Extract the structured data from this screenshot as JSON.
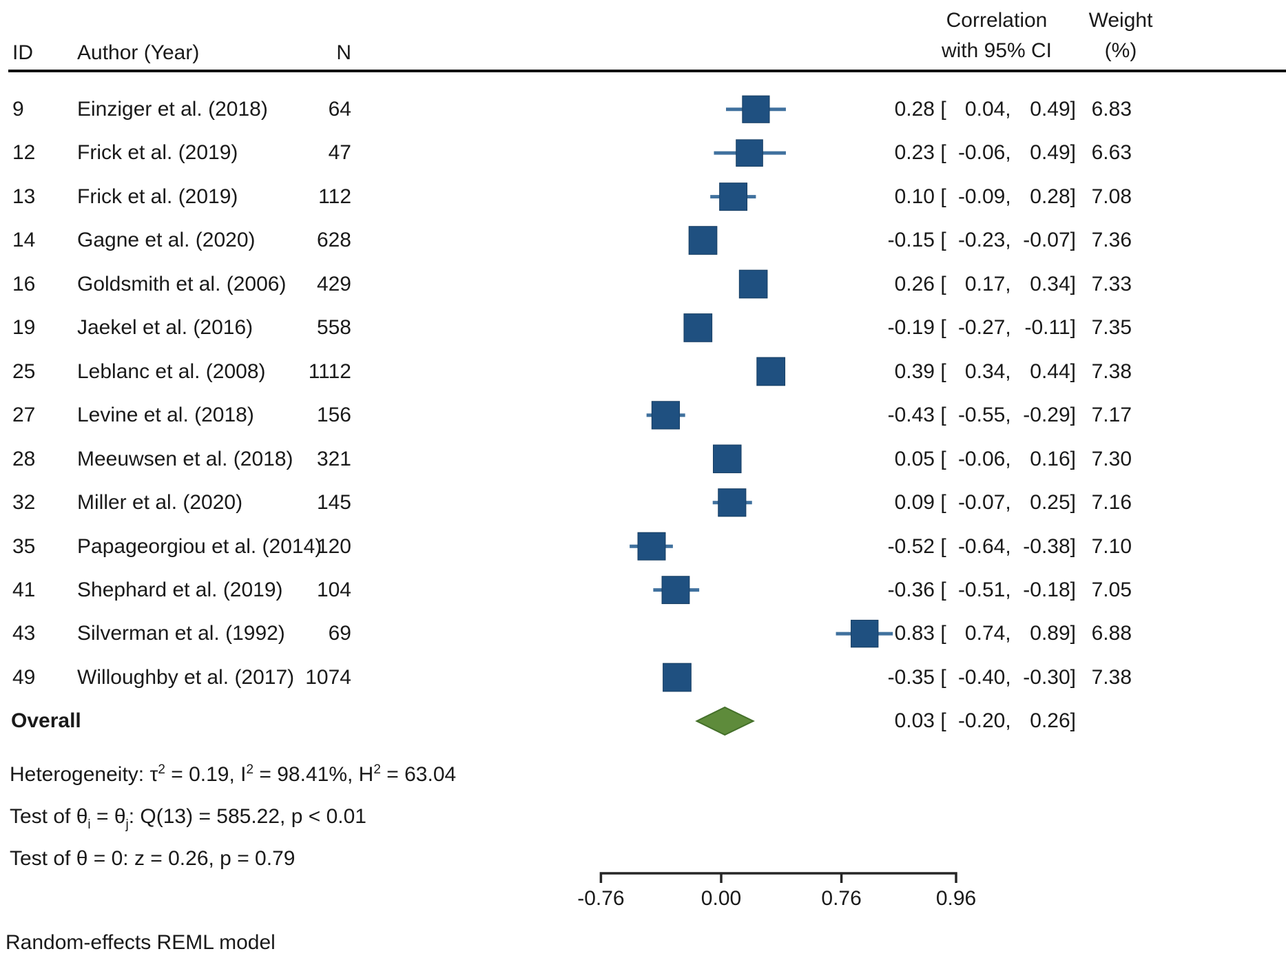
{
  "header": {
    "id": "ID",
    "author": "Author (Year)",
    "n": "N",
    "corr1": "Correlation",
    "corr2": "with 95% CI",
    "w1": "Weight",
    "w2": "(%)"
  },
  "chart_data": {
    "type": "forest",
    "x_scale": "fisher_z_of_correlation",
    "axis": {
      "xlim_r": [
        -0.76,
        0.96
      ],
      "ticks": [
        {
          "r": -0.76,
          "label": "-0.76"
        },
        {
          "r": 0.0,
          "label": "0.00"
        },
        {
          "r": 0.76,
          "label": "0.76"
        },
        {
          "r": 0.96,
          "label": "0.96"
        }
      ]
    },
    "studies": [
      {
        "id": 9,
        "author": "Einziger et al. (2018)",
        "n": 64,
        "est": 0.28,
        "lo": 0.04,
        "hi": 0.49,
        "weight": 6.83
      },
      {
        "id": 12,
        "author": "Frick et al. (2019)",
        "n": 47,
        "est": 0.23,
        "lo": -0.06,
        "hi": 0.49,
        "weight": 6.63
      },
      {
        "id": 13,
        "author": "Frick et al. (2019)",
        "n": 112,
        "est": 0.1,
        "lo": -0.09,
        "hi": 0.28,
        "weight": 7.08
      },
      {
        "id": 14,
        "author": "Gagne et al. (2020)",
        "n": 628,
        "est": -0.15,
        "lo": -0.23,
        "hi": -0.07,
        "weight": 7.36
      },
      {
        "id": 16,
        "author": "Goldsmith et al. (2006)",
        "n": 429,
        "est": 0.26,
        "lo": 0.17,
        "hi": 0.34,
        "weight": 7.33
      },
      {
        "id": 19,
        "author": "Jaekel et al. (2016)",
        "n": 558,
        "est": -0.19,
        "lo": -0.27,
        "hi": -0.11,
        "weight": 7.35
      },
      {
        "id": 25,
        "author": "Leblanc et al. (2008)",
        "n": 1112,
        "est": 0.39,
        "lo": 0.34,
        "hi": 0.44,
        "weight": 7.38
      },
      {
        "id": 27,
        "author": "Levine et al. (2018)",
        "n": 156,
        "est": -0.43,
        "lo": -0.55,
        "hi": -0.29,
        "weight": 7.17
      },
      {
        "id": 28,
        "author": "Meeuwsen et al. (2018)",
        "n": 321,
        "est": 0.05,
        "lo": -0.06,
        "hi": 0.16,
        "weight": 7.3
      },
      {
        "id": 32,
        "author": "Miller et al. (2020)",
        "n": 145,
        "est": 0.09,
        "lo": -0.07,
        "hi": 0.25,
        "weight": 7.16
      },
      {
        "id": 35,
        "author": "Papageorgiou et al. (2014)",
        "n": 120,
        "est": -0.52,
        "lo": -0.64,
        "hi": -0.38,
        "weight": 7.1
      },
      {
        "id": 41,
        "author": "Shephard et al. (2019)",
        "n": 104,
        "est": -0.36,
        "lo": -0.51,
        "hi": -0.18,
        "weight": 7.05
      },
      {
        "id": 43,
        "author": "Silverman et al. (1992)",
        "n": 69,
        "est": 0.83,
        "lo": 0.74,
        "hi": 0.89,
        "weight": 6.88
      },
      {
        "id": 49,
        "author": "Willoughby et al. (2017)",
        "n": 1074,
        "est": -0.35,
        "lo": -0.4,
        "hi": -0.3,
        "weight": 7.38
      }
    ],
    "overall": {
      "label": "Overall",
      "est": 0.03,
      "lo": -0.2,
      "hi": 0.26
    },
    "colors": {
      "square": "#1f5080",
      "whisker": "#40719e",
      "diamond": "#5e8b3b",
      "diamond_edge": "#44702a",
      "axis": "#262626",
      "rule": "#111111",
      "text": "#1a1a1a"
    }
  },
  "stats": {
    "het": [
      "Heterogeneity: τ",
      "2",
      " = 0.19, I",
      "2",
      " = 98.41%, H",
      "2",
      " = 63.04"
    ],
    "q": [
      "Test of θ",
      "i",
      " = θ",
      "j",
      ": Q(13) = 585.22, p < 0.01"
    ],
    "z": "Test of θ = 0: z = 0.26, p = 0.79"
  },
  "footer": "Random-effects REML model"
}
